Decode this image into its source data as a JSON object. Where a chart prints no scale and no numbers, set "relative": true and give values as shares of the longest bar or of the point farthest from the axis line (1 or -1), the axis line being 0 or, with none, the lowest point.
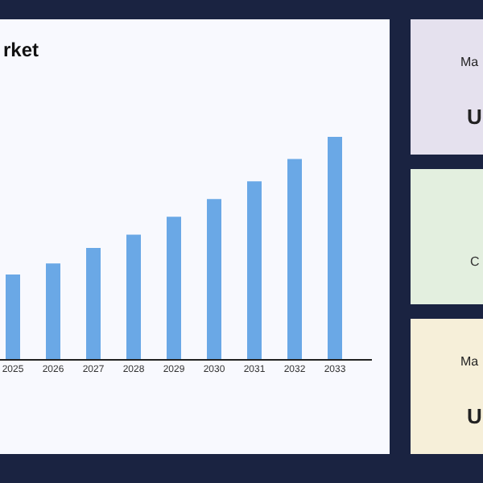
{
  "chart_data": [
    {
      "type": "bar",
      "title": "rket",
      "relative": true,
      "color": "#6aa8e6",
      "categories": [
        "2025",
        "2026",
        "2027",
        "2028",
        "2029",
        "2030",
        "2031",
        "2032",
        "2033"
      ],
      "values": [
        0.38,
        0.43,
        0.5,
        0.56,
        0.64,
        0.72,
        0.8,
        0.9,
        1
      ]
    },
    {
      "type": "other",
      "color": "#e5e1ee",
      "annotations": [
        "Ma",
        "U"
      ]
    },
    {
      "type": "other",
      "color": "#e3efdf",
      "annotations": [
        "C"
      ]
    },
    {
      "type": "other",
      "color": "#f6efd9",
      "annotations": [
        "Ma",
        "U"
      ]
    }
  ]
}
